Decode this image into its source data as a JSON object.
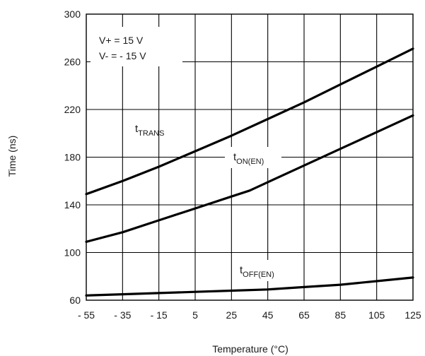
{
  "chart_data": {
    "type": "line",
    "title": "",
    "xlabel": "Temperature (°C)",
    "ylabel": "Time (ns)",
    "xlim": [
      -55,
      125
    ],
    "ylim": [
      60,
      300
    ],
    "x_ticks": [
      -55,
      -35,
      -15,
      5,
      25,
      45,
      65,
      85,
      105,
      125
    ],
    "x_tick_labels": [
      "- 55",
      "- 35",
      "- 15",
      "5",
      "25",
      "45",
      "65",
      "85",
      "105",
      "125"
    ],
    "y_ticks": [
      60,
      100,
      140,
      180,
      220,
      260,
      300
    ],
    "y_tick_labels": [
      "60",
      "100",
      "140",
      "180",
      "220",
      "260",
      "300"
    ],
    "grid": true,
    "annotations": [
      "V+ = 15 V",
      "V- = - 15 V"
    ],
    "series": [
      {
        "name": "tTRANS",
        "label_main": "t",
        "label_sub": "TRANS",
        "x": [
          -55,
          -35,
          -15,
          5,
          25,
          45,
          65,
          85,
          105,
          125
        ],
        "values": [
          149,
          160,
          172,
          185,
          198,
          212,
          226,
          241,
          256,
          271
        ]
      },
      {
        "name": "tON(EN)",
        "label_main": "t",
        "label_sub": "ON(EN)",
        "x": [
          -55,
          -35,
          -15,
          5,
          25,
          35,
          45,
          65,
          85,
          105,
          125
        ],
        "values": [
          109,
          117,
          127,
          137,
          147,
          152,
          159,
          173,
          187,
          201,
          215
        ]
      },
      {
        "name": "tOFF(EN)",
        "label_main": "t",
        "label_sub": "OFF(EN)",
        "x": [
          -55,
          -35,
          -15,
          5,
          25,
          45,
          65,
          85,
          105,
          125
        ],
        "values": [
          64,
          65,
          66,
          67,
          68,
          69,
          71,
          73,
          76,
          79
        ]
      }
    ]
  }
}
